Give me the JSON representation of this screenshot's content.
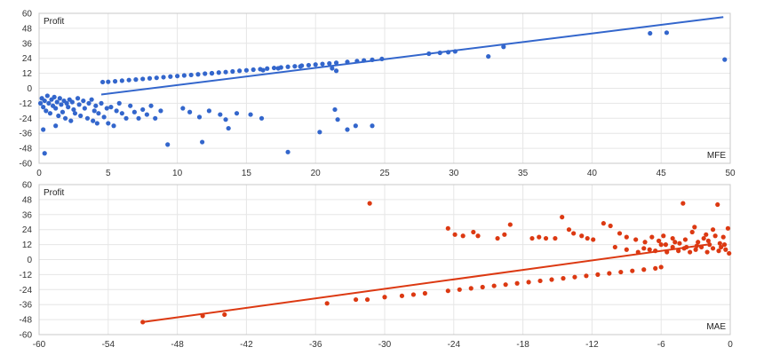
{
  "chart_data": [
    {
      "type": "scatter",
      "ylabel": "Profit",
      "xlabel": "MFE",
      "xlim": [
        0,
        50
      ],
      "ylim": [
        -60,
        60
      ],
      "xticks": [
        "0",
        "5",
        "10",
        "15",
        "20",
        "25",
        "30",
        "35",
        "40",
        "45",
        "50"
      ],
      "yticks": [
        "60",
        "48",
        "36",
        "24",
        "12",
        "0",
        "-12",
        "-24",
        "-36",
        "-48",
        "-60"
      ],
      "color": "#3366cc",
      "grid": true,
      "trendline": [
        [
          4.5,
          -5
        ],
        [
          49.5,
          57
        ]
      ],
      "points": [
        [
          0.1,
          -12
        ],
        [
          0.2,
          -8
        ],
        [
          0.3,
          -15
        ],
        [
          0.4,
          -10
        ],
        [
          0.5,
          -18
        ],
        [
          0.6,
          -6
        ],
        [
          0.7,
          -12
        ],
        [
          0.8,
          -20
        ],
        [
          0.9,
          -9
        ],
        [
          1.0,
          -14
        ],
        [
          1.1,
          -7
        ],
        [
          1.2,
          -16
        ],
        [
          1.3,
          -11
        ],
        [
          1.4,
          -22
        ],
        [
          1.5,
          -8
        ],
        [
          1.6,
          -13
        ],
        [
          1.7,
          -19
        ],
        [
          1.8,
          -10
        ],
        [
          1.9,
          -24
        ],
        [
          2.0,
          -12
        ],
        [
          2.1,
          -15
        ],
        [
          2.2,
          -9
        ],
        [
          2.3,
          -26
        ],
        [
          2.4,
          -11
        ],
        [
          2.5,
          -17
        ],
        [
          2.6,
          -20
        ],
        [
          2.8,
          -8
        ],
        [
          2.9,
          -13
        ],
        [
          3.0,
          -22
        ],
        [
          3.2,
          -10
        ],
        [
          3.3,
          -16
        ],
        [
          3.5,
          -24
        ],
        [
          3.6,
          -12
        ],
        [
          3.8,
          -9
        ],
        [
          4.0,
          -18
        ],
        [
          4.1,
          -14
        ],
        [
          4.3,
          -20
        ],
        [
          4.5,
          -12
        ],
        [
          4.7,
          -23
        ],
        [
          4.9,
          -16
        ],
        [
          5.0,
          -28
        ],
        [
          5.2,
          -15
        ],
        [
          5.4,
          -30
        ],
        [
          5.6,
          -18
        ],
        [
          5.8,
          -12
        ],
        [
          6.0,
          -20
        ],
        [
          6.3,
          -24
        ],
        [
          6.6,
          -14
        ],
        [
          6.9,
          -19
        ],
        [
          7.2,
          -24
        ],
        [
          7.5,
          -17
        ],
        [
          7.8,
          -21
        ],
        [
          8.1,
          -14
        ],
        [
          8.4,
          -24
        ],
        [
          8.8,
          -18
        ],
        [
          0.3,
          -33
        ],
        [
          0.4,
          -52
        ],
        [
          1.2,
          -30
        ],
        [
          3.9,
          -26
        ],
        [
          4.2,
          -28
        ],
        [
          9.3,
          -45
        ],
        [
          10.4,
          -16
        ],
        [
          10.9,
          -19
        ],
        [
          11.6,
          -23
        ],
        [
          11.8,
          -43
        ],
        [
          12.3,
          -18
        ],
        [
          13.1,
          -21
        ],
        [
          13.5,
          -25
        ],
        [
          13.7,
          -32
        ],
        [
          14.3,
          -20
        ],
        [
          15.3,
          -21
        ],
        [
          16.1,
          -24
        ],
        [
          18.0,
          -51
        ],
        [
          20.3,
          -35
        ],
        [
          21.4,
          -17
        ],
        [
          21.6,
          -25
        ],
        [
          22.3,
          -33
        ],
        [
          22.9,
          -30
        ],
        [
          24.1,
          -30
        ],
        [
          4.6,
          5
        ],
        [
          5.0,
          5.2
        ],
        [
          5.5,
          5.6
        ],
        [
          6.0,
          6.1
        ],
        [
          6.5,
          6.6
        ],
        [
          7.0,
          7.0
        ],
        [
          7.5,
          7.5
        ],
        [
          8.0,
          8.0
        ],
        [
          8.5,
          8.4
        ],
        [
          9.0,
          8.9
        ],
        [
          9.5,
          9.4
        ],
        [
          10.0,
          9.8
        ],
        [
          10.5,
          10.3
        ],
        [
          11.0,
          10.7
        ],
        [
          11.5,
          11.2
        ],
        [
          12.0,
          11.7
        ],
        [
          12.5,
          12.1
        ],
        [
          13.0,
          12.6
        ],
        [
          13.5,
          13.0
        ],
        [
          14.0,
          13.5
        ],
        [
          14.5,
          14.0
        ],
        [
          15.0,
          14.4
        ],
        [
          15.5,
          14.9
        ],
        [
          16.0,
          15.3
        ],
        [
          16.5,
          15.8
        ],
        [
          17.0,
          16.3
        ],
        [
          17.5,
          16.7
        ],
        [
          18.0,
          17.2
        ],
        [
          18.5,
          17.6
        ],
        [
          19.0,
          18.1
        ],
        [
          19.5,
          18.5
        ],
        [
          20.0,
          19.0
        ],
        [
          20.5,
          19.5
        ],
        [
          21.0,
          19.9
        ],
        [
          21.5,
          20.4
        ],
        [
          22.3,
          21.1
        ],
        [
          23.0,
          21.8
        ],
        [
          23.5,
          22.3
        ],
        [
          24.1,
          22.8
        ],
        [
          24.8,
          23.5
        ],
        [
          28.2,
          27.7
        ],
        [
          29.0,
          28.4
        ],
        [
          29.6,
          28.9
        ],
        [
          30.1,
          29.5
        ],
        [
          32.5,
          25.5
        ],
        [
          33.6,
          33.2
        ],
        [
          44.2,
          44
        ],
        [
          45.4,
          44.5
        ],
        [
          49.6,
          23
        ],
        [
          12.5,
          12
        ],
        [
          21.2,
          16
        ],
        [
          21.5,
          14
        ],
        [
          17.3,
          16
        ],
        [
          16.2,
          14.5
        ],
        [
          18.9,
          17.5
        ]
      ]
    },
    {
      "type": "scatter",
      "ylabel": "Profit",
      "xlabel": "MAE",
      "xlim": [
        -60,
        0
      ],
      "ylim": [
        -60,
        60
      ],
      "xticks": [
        "-60",
        "-54",
        "-48",
        "-42",
        "-36",
        "-30",
        "-24",
        "-18",
        "-12",
        "-6",
        "0"
      ],
      "yticks": [
        "60",
        "48",
        "36",
        "24",
        "12",
        "0",
        "-12",
        "-24",
        "-36",
        "-48",
        "-60"
      ],
      "color": "#dc3912",
      "grid": true,
      "trendline": [
        [
          -51,
          -50
        ],
        [
          -2,
          12
        ]
      ],
      "points": [
        [
          -51,
          -50
        ],
        [
          -45.8,
          -45
        ],
        [
          -43.9,
          -44
        ],
        [
          -35,
          -35
        ],
        [
          -32.5,
          -32
        ],
        [
          -31.5,
          -32
        ],
        [
          -30,
          -30
        ],
        [
          -28.5,
          -29
        ],
        [
          -27.5,
          -28
        ],
        [
          -26.5,
          -27
        ],
        [
          -24.5,
          -25
        ],
        [
          -23.5,
          -24
        ],
        [
          -22.5,
          -23
        ],
        [
          -21.5,
          -22
        ],
        [
          -20.5,
          -21
        ],
        [
          -19.5,
          -20
        ],
        [
          -18.5,
          -19
        ],
        [
          -17.5,
          -18
        ],
        [
          -16.5,
          -17
        ],
        [
          -15.5,
          -16
        ],
        [
          -14.5,
          -15
        ],
        [
          -13.5,
          -14
        ],
        [
          -12.5,
          -13
        ],
        [
          -11.5,
          -12
        ],
        [
          -10.5,
          -11
        ],
        [
          -9.5,
          -10
        ],
        [
          -8.5,
          -9
        ],
        [
          -7.5,
          -8
        ],
        [
          -6.5,
          -7
        ],
        [
          -6,
          -6
        ],
        [
          -31.3,
          45
        ],
        [
          -24.5,
          25
        ],
        [
          -23.9,
          20
        ],
        [
          -23.2,
          19
        ],
        [
          -22.3,
          22
        ],
        [
          -21.9,
          19
        ],
        [
          -20.2,
          17
        ],
        [
          -19.6,
          20
        ],
        [
          -19.1,
          28
        ],
        [
          -17.2,
          17
        ],
        [
          -16.6,
          18
        ],
        [
          -16.0,
          17
        ],
        [
          -15.2,
          17
        ],
        [
          -14.6,
          34
        ],
        [
          -14.0,
          24
        ],
        [
          -13.6,
          21
        ],
        [
          -12.9,
          19
        ],
        [
          -12.4,
          17
        ],
        [
          -11.9,
          16
        ],
        [
          -11.0,
          29
        ],
        [
          -10.4,
          27
        ],
        [
          -9.6,
          21
        ],
        [
          -9.0,
          18
        ],
        [
          -8.2,
          16
        ],
        [
          -7.4,
          14
        ],
        [
          -6.8,
          18
        ],
        [
          -6.2,
          15
        ],
        [
          -5.6,
          12
        ],
        [
          -5.0,
          17
        ],
        [
          -4.4,
          13
        ],
        [
          -3.8,
          10
        ],
        [
          -3.3,
          22
        ],
        [
          -2.8,
          14
        ],
        [
          -2.3,
          17
        ],
        [
          -1.8,
          12
        ],
        [
          -1.3,
          19
        ],
        [
          -0.8,
          10
        ],
        [
          -0.4,
          8
        ],
        [
          -0.2,
          25
        ],
        [
          -4.1,
          45
        ],
        [
          -1.1,
          44
        ],
        [
          -10,
          10
        ],
        [
          -9,
          8
        ],
        [
          -8,
          6
        ],
        [
          -7.5,
          9
        ],
        [
          -7,
          8
        ],
        [
          -6.5,
          7
        ],
        [
          -6,
          12
        ],
        [
          -5.5,
          6
        ],
        [
          -5,
          10
        ],
        [
          -4.5,
          7
        ],
        [
          -4,
          9
        ],
        [
          -3.5,
          6
        ],
        [
          -3,
          8
        ],
        [
          -2.5,
          10
        ],
        [
          -2,
          6
        ],
        [
          -1.5,
          9
        ],
        [
          -1,
          7
        ],
        [
          -0.5,
          12
        ],
        [
          -0.1,
          5
        ],
        [
          -4.8,
          14
        ],
        [
          -3.9,
          16
        ],
        [
          -2.9,
          11
        ],
        [
          -1.9,
          15
        ],
        [
          -0.9,
          13
        ],
        [
          -5.8,
          19
        ],
        [
          -3.1,
          26
        ],
        [
          -2.1,
          20
        ],
        [
          -1.5,
          24
        ],
        [
          -0.6,
          18
        ]
      ]
    }
  ]
}
